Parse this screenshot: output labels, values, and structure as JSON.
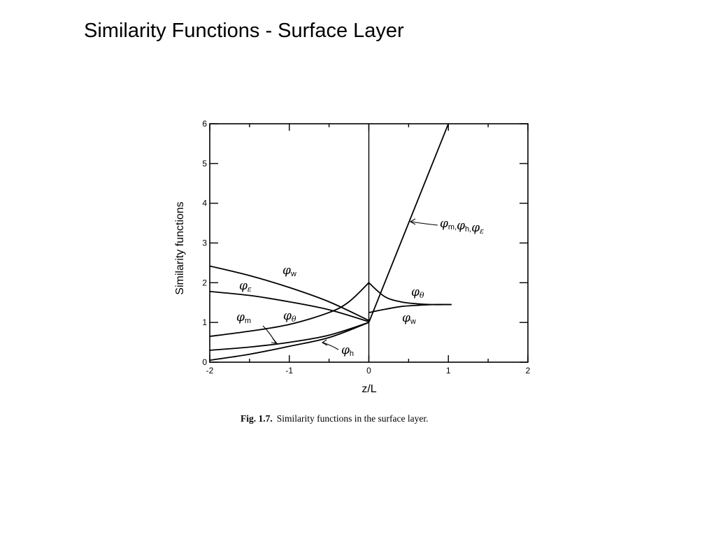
{
  "slide": {
    "title": "Similarity Functions - Surface Layer"
  },
  "chart_data": {
    "type": "line",
    "title": "",
    "xlabel": "z/L",
    "ylabel": "Similarity functions",
    "xlim": [
      -2,
      2
    ],
    "ylim": [
      0,
      6
    ],
    "x_ticks": [
      -2,
      -1,
      0,
      1,
      2
    ],
    "y_ticks": [
      0,
      1,
      2,
      3,
      4,
      5,
      6
    ],
    "grid": false,
    "caption": {
      "prefix": "Fig. 1.7.",
      "text": "Similarity functions in the surface layer."
    },
    "series": [
      {
        "name": "φw",
        "label": {
          "symbol": "φ",
          "subscript": "w"
        },
        "x": [
          -2,
          -1.5,
          -1,
          -0.5,
          0
        ],
        "y": [
          2.42,
          2.18,
          1.88,
          1.52,
          1.05
        ]
      },
      {
        "name": "φε",
        "label": {
          "symbol": "φ",
          "subscript": "ε"
        },
        "x": [
          -2,
          -1.5,
          -1,
          -0.5,
          0
        ],
        "y": [
          1.78,
          1.68,
          1.52,
          1.32,
          1.02
        ]
      },
      {
        "name": "φθ",
        "label": {
          "symbol": "φ",
          "subscript": "θ"
        },
        "x": [
          -2,
          -1.5,
          -1,
          -0.5,
          -0.25,
          0
        ],
        "y": [
          0.65,
          0.78,
          0.95,
          1.25,
          1.52,
          2.0
        ]
      },
      {
        "name": "φm",
        "label": {
          "symbol": "φ",
          "subscript": "m"
        },
        "x": [
          -2,
          -1.5,
          -1,
          -0.5,
          0
        ],
        "y": [
          0.3,
          0.38,
          0.5,
          0.68,
          1.0
        ]
      },
      {
        "name": "φh",
        "label": {
          "symbol": "φ",
          "subscript": "h"
        },
        "x": [
          -2,
          -1.5,
          -1,
          -0.5,
          0
        ],
        "y": [
          0.05,
          0.2,
          0.4,
          0.62,
          1.0
        ]
      },
      {
        "name": "φm, φh, φε",
        "label": {
          "symbol": "φ",
          "subscript": "m, φh, φε"
        },
        "x": [
          0,
          1
        ],
        "y": [
          1,
          6
        ]
      },
      {
        "name": "φθ (stable)",
        "label": {
          "symbol": "φ",
          "subscript": "θ"
        },
        "x": [
          0,
          0.2,
          0.4,
          0.6,
          0.8,
          1.04
        ],
        "y": [
          2.0,
          1.65,
          1.52,
          1.47,
          1.45,
          1.45
        ]
      },
      {
        "name": "φw (stable)",
        "label": {
          "symbol": "φ",
          "subscript": "w"
        },
        "x": [
          0,
          0.2,
          0.4,
          0.6,
          0.8,
          1.04
        ],
        "y": [
          1.25,
          1.33,
          1.4,
          1.43,
          1.45,
          1.45
        ]
      }
    ]
  }
}
